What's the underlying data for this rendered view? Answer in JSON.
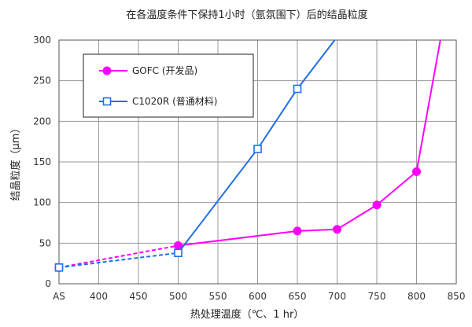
{
  "chart_data": {
    "type": "line",
    "title": "在各温度条件下保持1小时（氩氛围下）后的结晶粒度",
    "xlabel": "热处理温度（℃、1 hr）",
    "ylabel": "结晶粒度（μm）",
    "x_ticks": [
      "AS",
      "400",
      "450",
      "500",
      "550",
      "600",
      "650",
      "700",
      "750",
      "800",
      "850"
    ],
    "y_ticks": [
      "0",
      "50",
      "100",
      "150",
      "200",
      "250",
      "300"
    ],
    "xlim": [
      350,
      850
    ],
    "ylim": [
      0,
      300
    ],
    "grid": true,
    "legend_position": "top-left",
    "series": [
      {
        "name": "GOFC (开发品)",
        "color": "#ff00ff",
        "marker": "circle",
        "dashed_points": [
          {
            "x": "AS",
            "y": 20
          },
          {
            "x": 500,
            "y": 47
          }
        ],
        "points": [
          {
            "x": 500,
            "y": 47
          },
          {
            "x": 650,
            "y": 65
          },
          {
            "x": 700,
            "y": 67
          },
          {
            "x": 750,
            "y": 97
          },
          {
            "x": 800,
            "y": 138
          },
          {
            "x": 830,
            "y": 300
          }
        ],
        "markers": [
          {
            "x": "AS",
            "y": 20
          },
          {
            "x": 500,
            "y": 47
          },
          {
            "x": 650,
            "y": 65
          },
          {
            "x": 700,
            "y": 67
          },
          {
            "x": 750,
            "y": 97
          },
          {
            "x": 800,
            "y": 138
          }
        ]
      },
      {
        "name": "C1020R (普通材料)",
        "color": "#1f6fe8",
        "marker": "square",
        "dashed_points": [
          {
            "x": "AS",
            "y": 20
          },
          {
            "x": 500,
            "y": 38
          }
        ],
        "points": [
          {
            "x": 500,
            "y": 38
          },
          {
            "x": 600,
            "y": 166
          },
          {
            "x": 650,
            "y": 240
          },
          {
            "x": 697,
            "y": 300
          }
        ],
        "markers": [
          {
            "x": "AS",
            "y": 20
          },
          {
            "x": 500,
            "y": 38
          },
          {
            "x": 600,
            "y": 166
          },
          {
            "x": 650,
            "y": 240
          }
        ]
      }
    ]
  }
}
